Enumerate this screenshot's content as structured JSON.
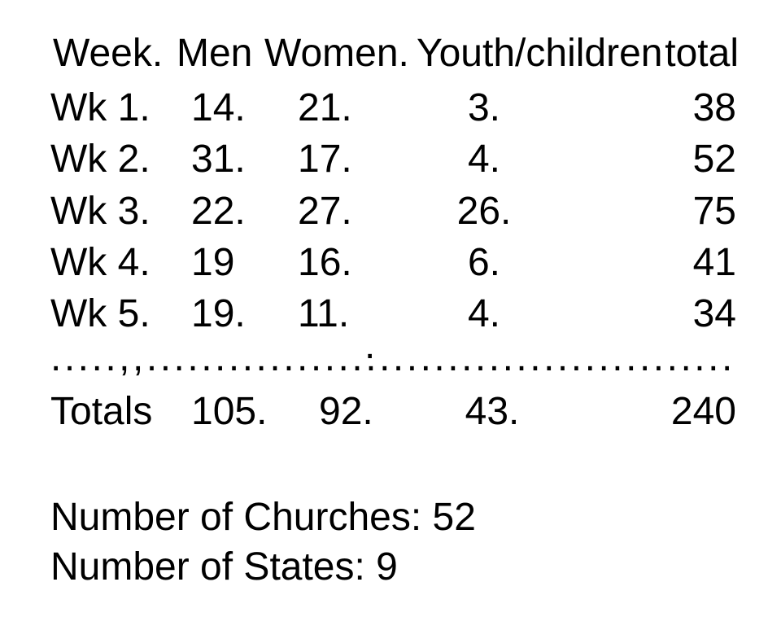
{
  "colors": {
    "background": "#ffffff",
    "text": "#000000"
  },
  "table": {
    "header": {
      "week": "Week.",
      "men": "Men",
      "women": "Women.",
      "youth": "Youth/children",
      "total": "total"
    },
    "rows": [
      {
        "week": "Wk 1.",
        "men": "14.",
        "women": "21.",
        "youth": "3.",
        "total": "38"
      },
      {
        "week": "Wk 2.",
        "men": "31.",
        "women": "17.",
        "youth": "4.",
        "total": "52"
      },
      {
        "week": "Wk 3.",
        "men": "22.",
        "women": "27.",
        "youth": "26.",
        "total": "75"
      },
      {
        "week": "Wk 4.",
        "men": "19",
        "women": "16.",
        "youth": "6.",
        "total": "41"
      },
      {
        "week": "Wk 5.",
        "men": "19.",
        "women": "11.",
        "youth": "4.",
        "total": "34"
      }
    ],
    "separator": {
      "stray_dot": ".",
      "dots_line": ".....,,..........................................."
    },
    "totals": {
      "label": "Totals",
      "men": "105.",
      "women": "92.",
      "youth": "43.",
      "total": "240"
    }
  },
  "summary": {
    "churches_line": "Number of Churches: 52",
    "states_line": "Number of States: 9"
  },
  "chart_data": {
    "type": "table",
    "title": "Weekly attendance totals",
    "columns": [
      "Week.",
      "Men",
      "Women.",
      "Youth/children",
      "total"
    ],
    "rows": [
      [
        "Wk 1.",
        14,
        21,
        3,
        38
      ],
      [
        "Wk 2.",
        31,
        17,
        4,
        52
      ],
      [
        "Wk 3.",
        22,
        27,
        26,
        75
      ],
      [
        "Wk 4.",
        19,
        16,
        6,
        41
      ],
      [
        "Wk 5.",
        19,
        11,
        4,
        34
      ]
    ],
    "totals_row": [
      "Totals",
      105,
      92,
      43,
      240
    ],
    "annotations": [
      "Number of Churches: 52",
      "Number of States: 9"
    ]
  }
}
